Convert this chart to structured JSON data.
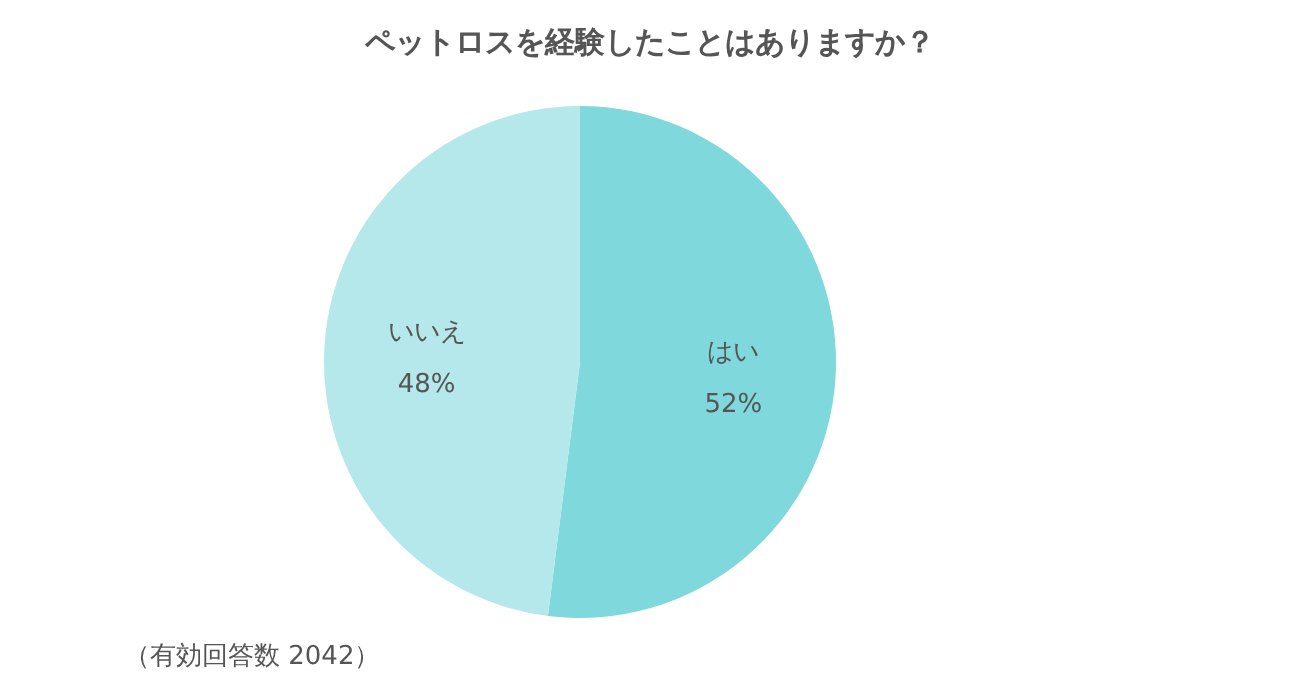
{
  "chart_data": {
    "type": "pie",
    "title": "ペットロスを経験したことはありますか？",
    "categories": [
      "はい",
      "いいえ"
    ],
    "values": [
      52,
      48
    ],
    "colors": [
      "#7fd9dc",
      "#b4e8ea"
    ],
    "value_labels": [
      "52%",
      "48%"
    ],
    "annotations": [
      "（有効回答数 2042）"
    ]
  }
}
